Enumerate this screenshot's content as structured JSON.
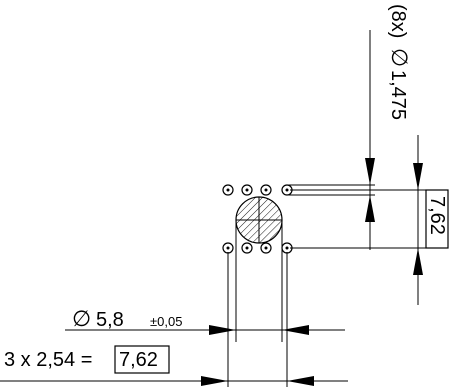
{
  "drawing": {
    "hole_count_note": "(8x)",
    "hole_diameter_symbol": "∅",
    "hole_diameter": "1,475",
    "vertical_spacing": "7,62",
    "body_diameter_symbol": "∅",
    "body_diameter": "5,8",
    "body_tolerance": "±0,05",
    "pitch_formula": "3 x 2,54 =",
    "pitch_total": "7,62"
  }
}
